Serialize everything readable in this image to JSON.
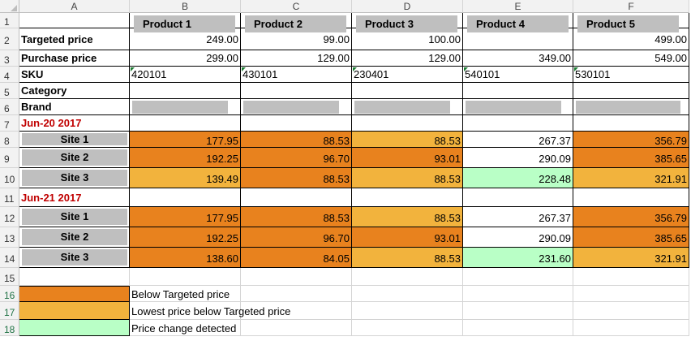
{
  "columns": [
    "A",
    "B",
    "C",
    "D",
    "E",
    "F"
  ],
  "rows": [
    "1",
    "2",
    "3",
    "4",
    "5",
    "6",
    "7",
    "8",
    "9",
    "10",
    "11",
    "12",
    "13",
    "14",
    "15",
    "16",
    "17",
    "18"
  ],
  "products": [
    "Product 1",
    "Product 2",
    "Product 3",
    "Product 4",
    "Product 5"
  ],
  "labels": {
    "targeted": "Targeted price",
    "purchase": "Purchase price",
    "sku": "SKU",
    "category": "Category",
    "brand": "Brand"
  },
  "targeted_prices": [
    "249.00",
    "99.00",
    "100.00",
    "",
    "499.00"
  ],
  "purchase_prices": [
    "299.00",
    "129.00",
    "129.00",
    "349.00",
    "549.00"
  ],
  "skus": [
    "420101",
    "430101",
    "230401",
    "540101",
    "530101"
  ],
  "dates": [
    "Jun-20 2017",
    "Jun-21 2017"
  ],
  "sites": [
    "Site 1",
    "Site 2",
    "Site 3"
  ],
  "colors": {
    "below_targeted": "#e8821e",
    "lowest_below": "#f2b33d",
    "price_change": "#b9ffc6",
    "date_red": "#c00000"
  },
  "block1": [
    [
      {
        "v": "177.95",
        "c": "o"
      },
      {
        "v": "88.53",
        "c": "o"
      },
      {
        "v": "88.53",
        "c": "l"
      },
      {
        "v": "267.37",
        "c": ""
      },
      {
        "v": "356.79",
        "c": "o"
      }
    ],
    [
      {
        "v": "192.25",
        "c": "o"
      },
      {
        "v": "96.70",
        "c": "o"
      },
      {
        "v": "93.01",
        "c": "o"
      },
      {
        "v": "290.09",
        "c": ""
      },
      {
        "v": "385.65",
        "c": "o"
      }
    ],
    [
      {
        "v": "139.49",
        "c": "l"
      },
      {
        "v": "88.53",
        "c": "o"
      },
      {
        "v": "88.53",
        "c": "l"
      },
      {
        "v": "228.48",
        "c": "g"
      },
      {
        "v": "321.91",
        "c": "l"
      }
    ]
  ],
  "block2": [
    [
      {
        "v": "177.95",
        "c": "o"
      },
      {
        "v": "88.53",
        "c": "o"
      },
      {
        "v": "88.53",
        "c": "l"
      },
      {
        "v": "267.37",
        "c": ""
      },
      {
        "v": "356.79",
        "c": "o"
      }
    ],
    [
      {
        "v": "192.25",
        "c": "o"
      },
      {
        "v": "96.70",
        "c": "o"
      },
      {
        "v": "93.01",
        "c": "o"
      },
      {
        "v": "290.09",
        "c": ""
      },
      {
        "v": "385.65",
        "c": "o"
      }
    ],
    [
      {
        "v": "138.60",
        "c": "o"
      },
      {
        "v": "84.05",
        "c": "o"
      },
      {
        "v": "88.53",
        "c": "l"
      },
      {
        "v": "231.60",
        "c": "g"
      },
      {
        "v": "321.91",
        "c": "l"
      }
    ]
  ],
  "legend": [
    {
      "text": "Below Targeted price",
      "c": "o"
    },
    {
      "text": "Lowest price below Targeted price",
      "c": "l"
    },
    {
      "text": "Price change detected",
      "c": "g"
    }
  ]
}
